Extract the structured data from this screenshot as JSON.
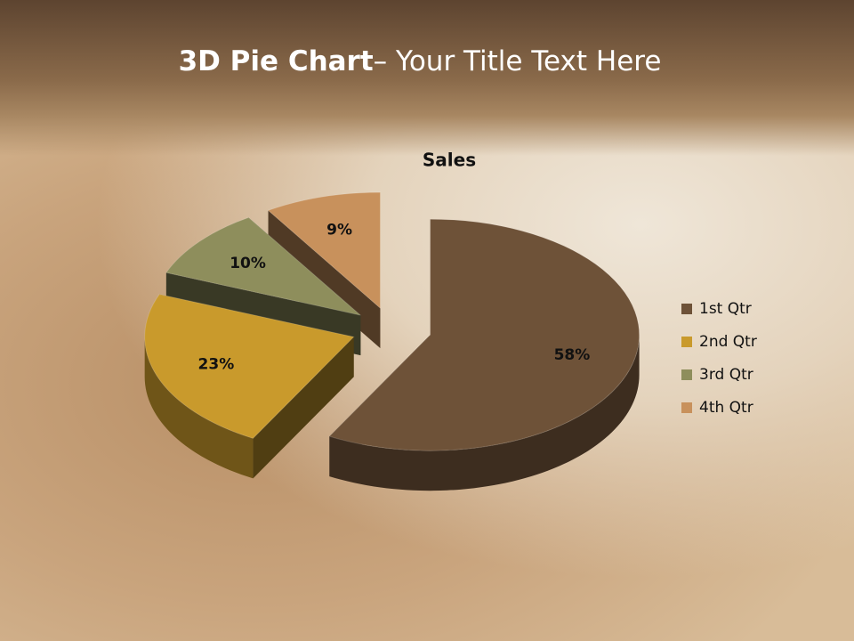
{
  "slide": {
    "title_bold": "3D Pie Chart",
    "title_rest": "– Your Title Text Here"
  },
  "chart_data": {
    "type": "pie3d",
    "title": "Sales",
    "categories": [
      "1st Qtr",
      "2nd Qtr",
      "3rd Qtr",
      "4th Qtr"
    ],
    "values": [
      58,
      23,
      10,
      9
    ],
    "value_labels": [
      "58%",
      "23%",
      "10%",
      "9%"
    ],
    "colors": [
      "#6e5238",
      "#c99a2c",
      "#8e8e5c",
      "#c8915c"
    ],
    "legend": "right"
  }
}
